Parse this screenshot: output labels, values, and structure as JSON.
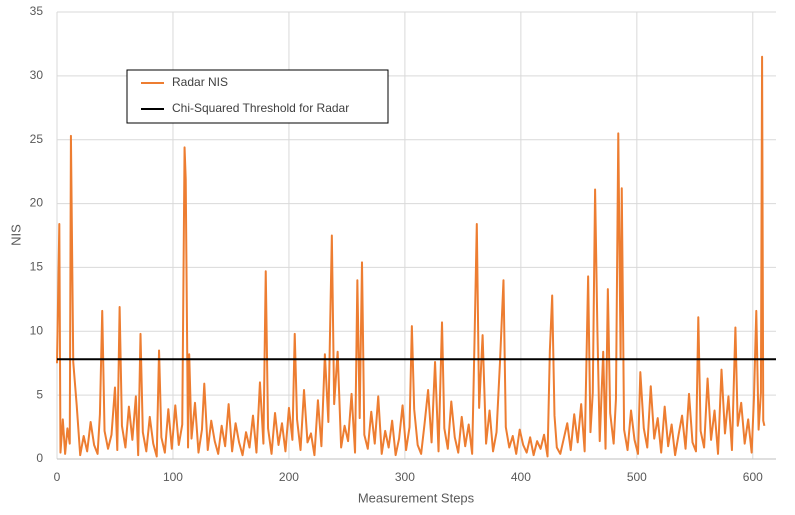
{
  "chart_data": {
    "type": "line",
    "xlabel": "Measurement Steps",
    "ylabel": "NIS",
    "xlim": [
      0,
      620
    ],
    "ylim": [
      0,
      35
    ],
    "xticks": [
      0,
      100,
      200,
      300,
      400,
      500,
      600
    ],
    "yticks": [
      0,
      5,
      10,
      15,
      20,
      25,
      30,
      35
    ],
    "grid": true,
    "x": [
      0,
      2,
      3,
      5,
      7,
      9,
      11,
      12,
      14,
      17,
      20,
      23,
      26,
      29,
      32,
      35,
      37,
      39,
      41,
      44,
      47,
      50,
      52,
      54,
      56,
      59,
      62,
      65,
      68,
      70,
      72,
      74,
      77,
      80,
      83,
      86,
      88,
      90,
      93,
      96,
      99,
      102,
      105,
      108,
      110,
      111,
      113,
      114,
      116,
      119,
      122,
      125,
      127,
      130,
      133,
      136,
      139,
      142,
      145,
      148,
      151,
      154,
      157,
      160,
      163,
      166,
      169,
      172,
      175,
      178,
      180,
      182,
      185,
      188,
      191,
      194,
      197,
      200,
      203,
      205,
      207,
      210,
      213,
      216,
      219,
      222,
      225,
      228,
      231,
      234,
      237,
      239,
      242,
      245,
      248,
      251,
      254,
      257,
      259,
      261,
      263,
      265,
      268,
      271,
      274,
      277,
      280,
      283,
      286,
      289,
      292,
      295,
      298,
      301,
      304,
      306,
      308,
      311,
      314,
      317,
      320,
      323,
      326,
      329,
      332,
      334,
      337,
      340,
      343,
      346,
      349,
      352,
      355,
      358,
      360,
      362,
      364,
      367,
      370,
      373,
      376,
      379,
      382,
      385,
      387,
      390,
      393,
      396,
      399,
      402,
      405,
      408,
      411,
      414,
      417,
      420,
      423,
      425,
      427,
      429,
      431,
      434,
      437,
      440,
      443,
      446,
      449,
      452,
      455,
      458,
      460,
      462,
      464,
      466,
      468,
      471,
      473,
      475,
      477,
      480,
      482,
      484,
      486,
      487,
      489,
      492,
      495,
      498,
      501,
      503,
      506,
      509,
      512,
      515,
      518,
      521,
      524,
      527,
      530,
      533,
      536,
      539,
      542,
      545,
      548,
      551,
      553,
      555,
      558,
      561,
      564,
      567,
      570,
      573,
      576,
      579,
      582,
      585,
      587,
      590,
      593,
      596,
      599,
      601,
      603,
      605,
      607,
      608,
      609,
      610
    ],
    "series": [
      {
        "name": "Radar NIS",
        "color": "#ed7d31",
        "values": [
          7.5,
          18.4,
          0.5,
          3.1,
          0.4,
          2.4,
          1.2,
          25.3,
          7.6,
          4.2,
          0.3,
          1.8,
          0.6,
          2.9,
          1.1,
          0.4,
          3.5,
          11.6,
          2.2,
          0.8,
          1.9,
          5.6,
          0.7,
          11.9,
          2.6,
          0.9,
          4.1,
          1.5,
          4.9,
          0.3,
          9.8,
          2.1,
          0.6,
          3.3,
          1.2,
          0.2,
          8.5,
          1.7,
          0.5,
          3.9,
          0.8,
          4.2,
          1.1,
          2.7,
          24.4,
          21.9,
          0.9,
          8.2,
          1.6,
          4.4,
          0.5,
          2.3,
          5.9,
          0.7,
          3.0,
          1.4,
          0.4,
          2.6,
          1.0,
          4.3,
          0.6,
          2.8,
          1.3,
          0.3,
          2.1,
          0.9,
          3.4,
          0.5,
          6.0,
          1.2,
          14.7,
          2.4,
          0.4,
          3.6,
          1.1,
          2.8,
          0.6,
          4.0,
          1.5,
          9.8,
          3.1,
          0.7,
          5.4,
          1.3,
          2.0,
          0.3,
          4.6,
          1.0,
          8.2,
          2.9,
          17.5,
          4.3,
          8.4,
          0.9,
          2.6,
          1.4,
          5.1,
          0.5,
          14.0,
          3.2,
          15.4,
          1.9,
          0.8,
          3.7,
          1.2,
          4.9,
          0.4,
          2.2,
          0.9,
          3.0,
          0.3,
          1.6,
          4.2,
          0.7,
          2.5,
          10.4,
          3.9,
          1.1,
          0.4,
          2.8,
          5.4,
          1.3,
          7.6,
          0.6,
          10.7,
          2.4,
          0.8,
          4.5,
          1.7,
          0.5,
          3.3,
          1.0,
          2.7,
          0.4,
          9.1,
          18.4,
          4.0,
          9.7,
          1.2,
          3.8,
          0.6,
          2.1,
          7.6,
          14.0,
          2.5,
          0.9,
          1.8,
          0.4,
          2.3,
          1.1,
          0.5,
          1.7,
          0.3,
          1.4,
          0.8,
          1.9,
          0.2,
          8.5,
          12.8,
          3.4,
          0.9,
          0.4,
          1.6,
          2.8,
          0.7,
          3.5,
          1.3,
          4.3,
          0.6,
          14.3,
          2.1,
          5.2,
          21.1,
          10.0,
          1.4,
          8.4,
          0.8,
          13.3,
          3.6,
          1.2,
          4.7,
          25.5,
          7.9,
          21.2,
          2.3,
          0.7,
          3.8,
          1.5,
          0.4,
          6.8,
          2.4,
          0.9,
          5.7,
          1.6,
          3.2,
          0.5,
          4.1,
          1.0,
          2.7,
          0.3,
          1.9,
          3.4,
          0.8,
          5.1,
          1.3,
          0.6,
          11.1,
          2.2,
          0.9,
          6.3,
          1.5,
          3.8,
          0.4,
          7.0,
          2.0,
          4.9,
          0.7,
          10.3,
          2.6,
          4.4,
          1.2,
          3.1,
          0.5,
          4.8,
          11.6,
          2.3,
          5.2,
          31.5,
          3.0,
          2.6
        ]
      }
    ],
    "threshold": {
      "name": "Chi-Squared Threshold for Radar",
      "value": 7.815,
      "color": "#000000"
    }
  }
}
